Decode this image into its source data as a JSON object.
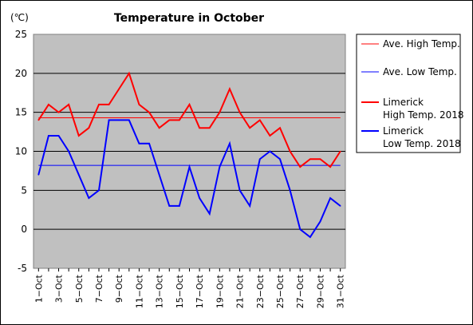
{
  "chart_data": {
    "type": "line",
    "title": "Temperature in October",
    "unit_label": "(℃)",
    "xlabel": "",
    "ylabel": "",
    "ylim": [
      -5,
      25
    ],
    "ytick_step": 5,
    "grid": "horizontal",
    "plot_background": "#c0c0c0",
    "legend_position": "right",
    "x_days": [
      1,
      2,
      3,
      4,
      5,
      6,
      7,
      8,
      9,
      10,
      11,
      12,
      13,
      14,
      15,
      16,
      17,
      18,
      19,
      20,
      21,
      22,
      23,
      24,
      25,
      26,
      27,
      28,
      29,
      30,
      31
    ],
    "x_tick_labels": [
      "1−Oct",
      "3−Oct",
      "5−Oct",
      "7−Oct",
      "9−Oct",
      "11−Oct",
      "13−Oct",
      "15−Oct",
      "17−Oct",
      "19−Oct",
      "21−Oct",
      "23−Oct",
      "25−Oct",
      "27−Oct",
      "29−Oct",
      "31−Oct"
    ],
    "x_tick_days": [
      1,
      3,
      5,
      7,
      9,
      11,
      13,
      15,
      17,
      19,
      21,
      23,
      25,
      27,
      29,
      31
    ],
    "y_tick_labels": [
      "25",
      "20",
      "15",
      "10",
      "5",
      "0",
      "-5"
    ],
    "reference_lines": [
      {
        "name": "Ave. High Temp.",
        "value": 14.3,
        "color": "#ff0000"
      },
      {
        "name": "Ave. Low Temp.",
        "value": 8.2,
        "color": "#0000ff"
      }
    ],
    "series": [
      {
        "name_line1": "Limerick",
        "name_line2": "High Temp. 2018",
        "color": "#ff0000",
        "values": [
          14,
          16,
          15,
          16,
          12,
          13,
          16,
          16,
          18,
          20,
          16,
          15,
          13,
          14,
          14,
          16,
          13,
          13,
          15,
          18,
          15,
          13,
          14,
          12,
          13,
          10,
          8,
          9,
          9,
          8,
          10
        ]
      },
      {
        "name_line1": "Limerick",
        "name_line2": "Low Temp. 2018",
        "color": "#0000ff",
        "values": [
          7,
          12,
          12,
          10,
          7,
          4,
          5,
          14,
          14,
          14,
          11,
          11,
          7,
          3,
          3,
          8,
          4,
          2,
          8,
          11,
          5,
          3,
          9,
          10,
          9,
          5,
          0,
          -1,
          1,
          4,
          3
        ]
      }
    ]
  }
}
